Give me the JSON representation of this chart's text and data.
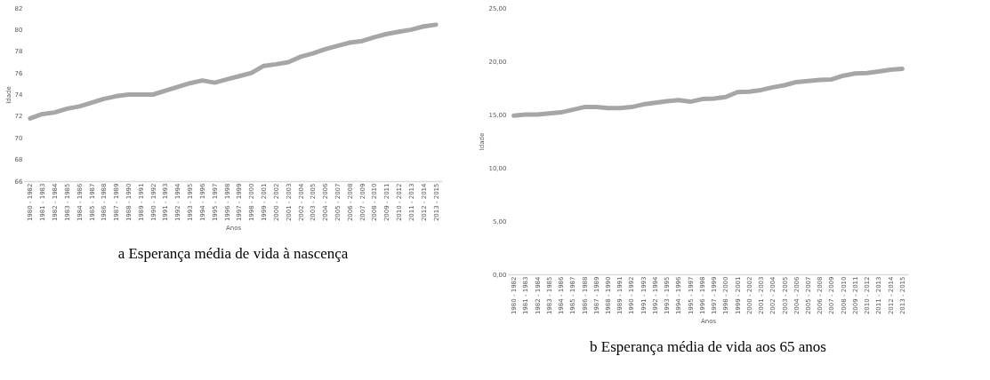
{
  "chart_data": [
    {
      "type": "line",
      "title": "a Esperança média de vida à nascença",
      "xlabel": "Anos",
      "ylabel": "Idade",
      "categories": [
        "1980 - 1982",
        "1981 - 1983",
        "1982 - 1984",
        "1983 - 1985",
        "1984 - 1986",
        "1985 - 1987",
        "1986 - 1988",
        "1987 - 1989",
        "1988 - 1990",
        "1989 - 1991",
        "1990 - 1992",
        "1991 - 1993",
        "1992 - 1994",
        "1993 - 1995",
        "1994 - 1996",
        "1995 - 1997",
        "1996 - 1998",
        "1997 - 1999",
        "1998 - 2000",
        "1999 - 2001",
        "2000 - 2002",
        "2001 - 2003",
        "2002 - 2004",
        "2003 - 2005",
        "2004 - 2006",
        "2005 - 2007",
        "2006 - 2008",
        "2007 - 2009",
        "2008 - 2010",
        "2009 - 2011",
        "2010 - 2012",
        "2011 - 2013",
        "2012 - 2014",
        "2013 - 2015"
      ],
      "series": [
        {
          "color": "#a6a6a6",
          "values": [
            71.8,
            72.2,
            72.35,
            72.7,
            72.9,
            73.25,
            73.6,
            73.85,
            74.0,
            74.0,
            74.0,
            74.35,
            74.7,
            75.05,
            75.3,
            75.1,
            75.4,
            75.7,
            76.0,
            76.65,
            76.8,
            77.0,
            77.5,
            77.8,
            78.2,
            78.5,
            78.8,
            78.95,
            79.3,
            79.6,
            79.8,
            80.0,
            80.3,
            80.45
          ]
        }
      ],
      "ylim": [
        66,
        82
      ],
      "yticks": [
        66,
        68,
        70,
        72,
        74,
        76,
        78,
        80,
        82
      ],
      "grid": false,
      "legend": false
    },
    {
      "type": "line",
      "title": "b Esperança média de vida aos 65 anos",
      "xlabel": "Anos",
      "ylabel": "Idade",
      "categories": [
        "1980 - 1982",
        "1981 - 1983",
        "1982 - 1984",
        "1983 - 1985",
        "1984 - 1986",
        "1985 - 1987",
        "1986 - 1988",
        "1987 - 1989",
        "1988 - 1990",
        "1989 - 1991",
        "1990 - 1992",
        "1991 - 1993",
        "1992 - 1994",
        "1993 - 1995",
        "1994 - 1996",
        "1995 - 1997",
        "1996 - 1998",
        "1997 - 1999",
        "1998 - 2000",
        "1999 - 2001",
        "2000 - 2002",
        "2001 - 2003",
        "2002 - 2004",
        "2003 - 2005",
        "2004 - 2006",
        "2005 - 2007",
        "2006 - 2008",
        "2007 - 2009",
        "2008 - 2010",
        "2009 - 2011",
        "2010 - 2012",
        "2011 - 2013",
        "2012 - 2014",
        "2013 - 2015"
      ],
      "series": [
        {
          "color": "#a6a6a6",
          "values": [
            14.9,
            15.0,
            15.0,
            15.1,
            15.2,
            15.45,
            15.7,
            15.7,
            15.6,
            15.6,
            15.7,
            15.95,
            16.1,
            16.25,
            16.35,
            16.2,
            16.45,
            16.5,
            16.65,
            17.1,
            17.15,
            17.3,
            17.55,
            17.75,
            18.05,
            18.15,
            18.25,
            18.3,
            18.65,
            18.85,
            18.9,
            19.05,
            19.2,
            19.3
          ]
        }
      ],
      "ylim": [
        0,
        25
      ],
      "yticks": [
        {
          "value": 0,
          "label": "0,00"
        },
        {
          "value": 5,
          "label": "5,00"
        },
        {
          "value": 10,
          "label": "10,00"
        },
        {
          "value": 15,
          "label": "15,00"
        },
        {
          "value": 20,
          "label": "20,00"
        },
        {
          "value": 25,
          "label": "25,00"
        }
      ],
      "grid": false,
      "legend": false
    }
  ]
}
